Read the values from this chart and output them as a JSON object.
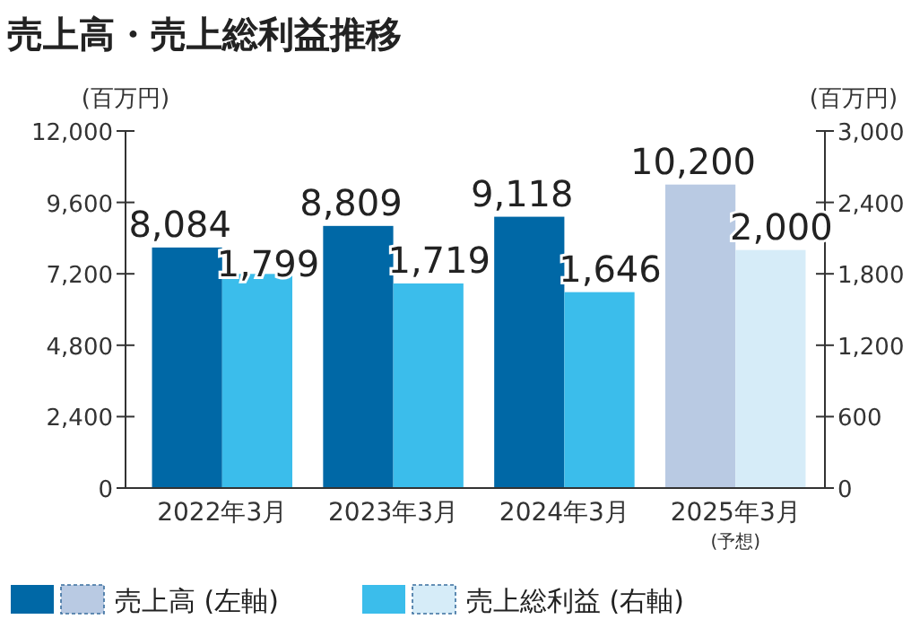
{
  "chart_data": {
    "type": "bar",
    "title": "売上高・売上総利益推移",
    "ylabel": "(百万円)",
    "y2label": "(百万円)",
    "categories": [
      "2022年3月",
      "2023年3月",
      "2024年3月",
      "2025年3月$_{(予想)}$"
    ],
    "series": [
      {
        "name": "売上高 (左軸)",
        "colors": [
          "#0068a6",
          "#0068a6",
          "#0068a6",
          "#b9cae3"
        ],
        "values": [
          8084,
          8809,
          9118,
          10200
        ],
        "value_labels": [
          "8,084",
          "8,809",
          "9,118",
          "10,200"
        ]
      },
      {
        "name": "売上総利益 (右軸)",
        "colors": [
          "#3bbdeb",
          "#3bbdeb",
          "#3bbdeb",
          "#d6ecf8"
        ],
        "values": [
          1799,
          1719,
          1646,
          2000
        ],
        "value_labels": [
          "1,799",
          "1,719",
          "1,646",
          "2,000"
        ],
        "axis": "y2"
      }
    ],
    "ylim": [
      0,
      12000
    ],
    "yticks": [
      {
        "value": 0,
        "label": "0"
      },
      {
        "value": 2400,
        "label": "2,400"
      },
      {
        "value": 4800,
        "label": "4,800"
      },
      {
        "value": 7200,
        "label": "7,200"
      },
      {
        "value": 9600,
        "label": "9,600"
      },
      {
        "value": 12000,
        "label": "12,000"
      }
    ],
    "y2lim": [
      0,
      3000
    ],
    "y2ticks": [
      {
        "value": 0,
        "label": "0"
      },
      {
        "value": 600,
        "label": "600"
      },
      {
        "value": 1200,
        "label": "1,200"
      },
      {
        "value": 1800,
        "label": "1,800"
      },
      {
        "value": 2400,
        "label": "2,400"
      },
      {
        "value": 3000,
        "label": "3,000"
      }
    ],
    "legend": "bottom",
    "grid": false
  }
}
